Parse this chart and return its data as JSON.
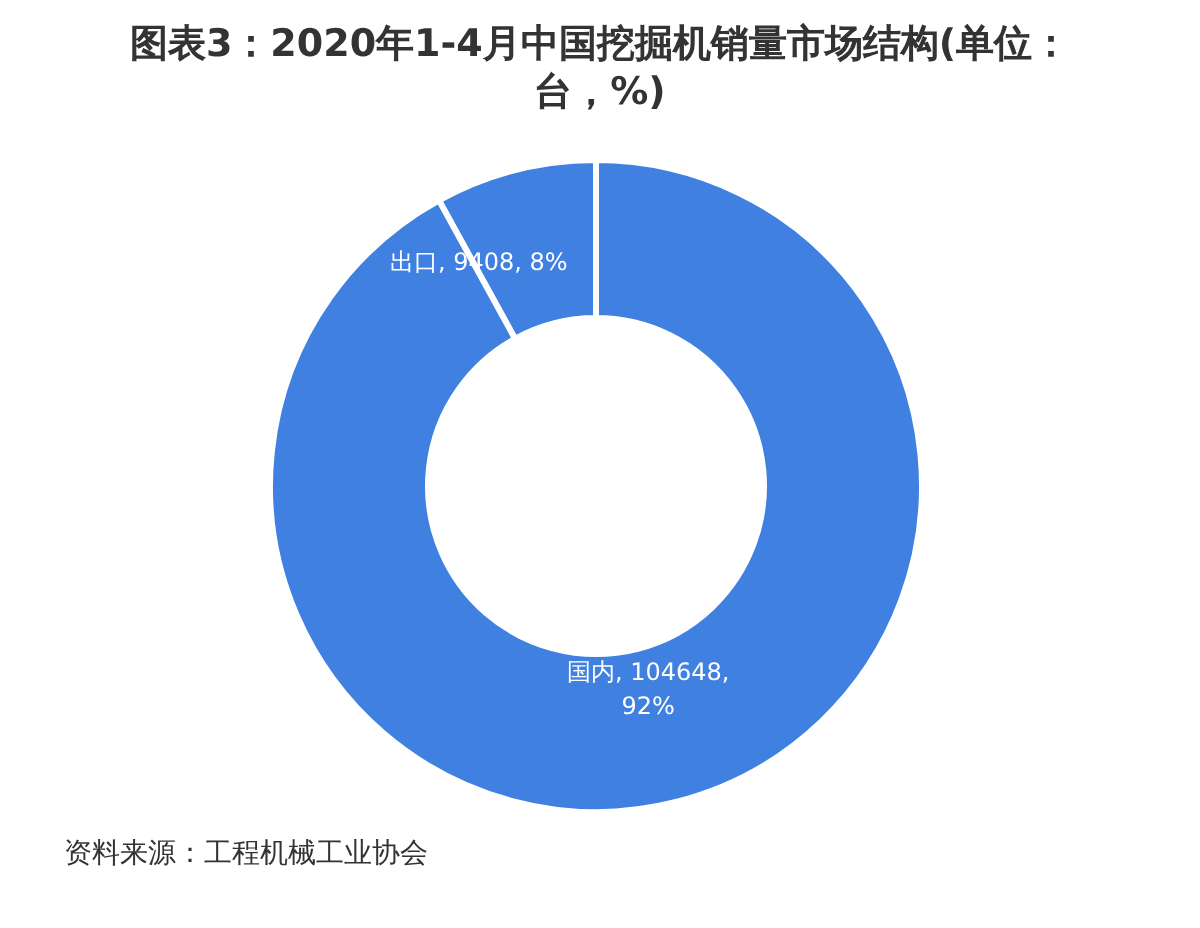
{
  "chart_data": {
    "type": "donut",
    "title": "图表3：2020年1-4月中国挖掘机销量市场结构(单位：台，%)",
    "categories": [
      "出口",
      "国内"
    ],
    "values": [
      8,
      92
    ],
    "colors": [
      "#3f80e0",
      "#3f80e0"
    ],
    "value_labels": [
      "9408, 8%",
      "104648, 92%"
    ],
    "annotations": [
      "资料来源：工程机械工业协会"
    ],
    "legend": false
  }
}
